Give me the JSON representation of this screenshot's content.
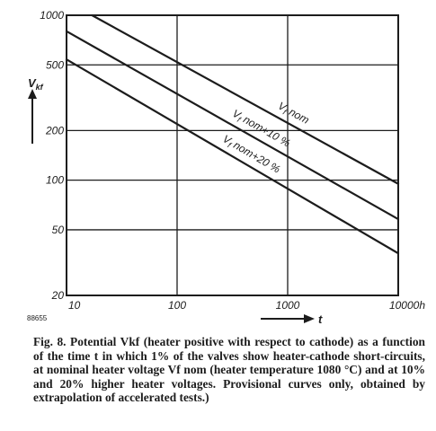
{
  "chart_data": {
    "type": "line",
    "xscale": "log",
    "yscale": "log",
    "xlim": [
      10,
      10000
    ],
    "ylim": [
      20,
      1000
    ],
    "x_ticks": [
      {
        "value": 10,
        "label": "10"
      },
      {
        "value": 100,
        "label": "100"
      },
      {
        "value": 1000,
        "label": "1000"
      },
      {
        "value": 10000,
        "label": "10000h"
      }
    ],
    "y_ticks": [
      {
        "value": 1000,
        "label": "1000"
      },
      {
        "value": 500,
        "label": "500"
      },
      {
        "value": 200,
        "label": "200"
      },
      {
        "value": 100,
        "label": "100"
      },
      {
        "value": 50,
        "label": "50"
      },
      {
        "value": 20,
        "label": "20"
      }
    ],
    "xlabel": "t",
    "ylabel_main": "V",
    "ylabel_sub": "kf",
    "grid": true,
    "series": [
      {
        "name": "Vf nom",
        "label_main": "V",
        "label_sub": "f",
        "label_rest": " nom",
        "points": [
          [
            17,
            1000
          ],
          [
            10000,
            95
          ]
        ]
      },
      {
        "name": "Vf nom+10 %",
        "label_main": "V",
        "label_sub": "f",
        "label_rest": " nom+10 %",
        "points": [
          [
            10,
            800
          ],
          [
            10000,
            58
          ]
        ]
      },
      {
        "name": "Vf nom+20 %",
        "label_main": "V",
        "label_sub": "f",
        "label_rest": " nom+20 %",
        "points": [
          [
            10,
            540
          ],
          [
            10000,
            36
          ]
        ]
      }
    ]
  },
  "figure_number": "88655",
  "caption": "Fig. 8. Potential Vkf (heater positive with respect to cathode) as a function of the time t in which 1% of the valves show heater-cathode short-circuits, at nominal heater voltage Vf nom (heater temperature 1080 °C) and at 10% and 20% higher heater voltages. Provisional curves only, obtained by extrapolation of accelerated tests.)"
}
